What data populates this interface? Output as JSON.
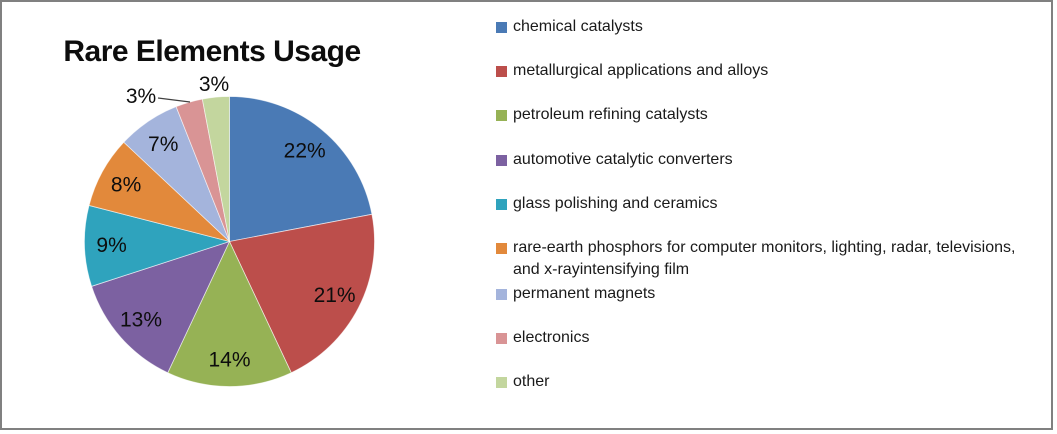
{
  "chart_data": {
    "type": "pie",
    "title": "Rare Elements Usage",
    "categories": [
      "chemical catalysts",
      "metallurgical applications and alloys",
      "petroleum refining catalysts",
      "automotive catalytic converters",
      "glass polishing and ceramics",
      "rare-earth phosphors for computer monitors, lighting, radar, televisions, and x-rayintensifying film",
      "permanent magnets",
      "electronics",
      "other"
    ],
    "values": [
      22,
      21,
      14,
      13,
      9,
      8,
      7,
      3,
      3
    ],
    "data_labels": [
      "22%",
      "21%",
      "14%",
      "13%",
      "9%",
      "8%",
      "7%",
      "3%",
      "3%"
    ],
    "unit": "%",
    "colors": [
      "#4A7AB5",
      "#BC4E4B",
      "#96B255",
      "#7C61A1",
      "#2FA3BD",
      "#E2893B",
      "#A4B4DC",
      "#D99495",
      "#C3D69E"
    ],
    "start_angle_deg": 0,
    "direction": "clockwise",
    "legend_position": "right",
    "label_format": "percent",
    "grid": false,
    "frame_border_color": "#808080"
  }
}
